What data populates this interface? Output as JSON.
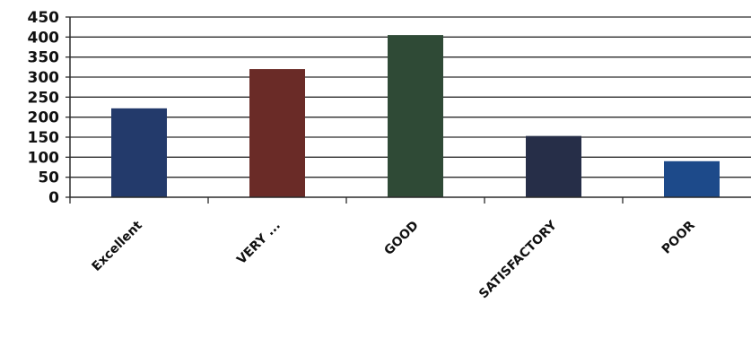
{
  "chart_data": {
    "type": "bar",
    "title": "",
    "xlabel": "",
    "ylabel": "",
    "categories": [
      "Excellent",
      "VERY ...",
      "GOOD",
      "SATISFACTORY",
      "POOR"
    ],
    "values": [
      222,
      320,
      405,
      153,
      90
    ],
    "ylim": [
      0,
      450
    ],
    "ytick_step": 50,
    "grid": true,
    "legend": "none",
    "colors": [
      "#233a6b",
      "#6a2b27",
      "#2f4a36",
      "#262e48",
      "#1d4a8a"
    ]
  }
}
